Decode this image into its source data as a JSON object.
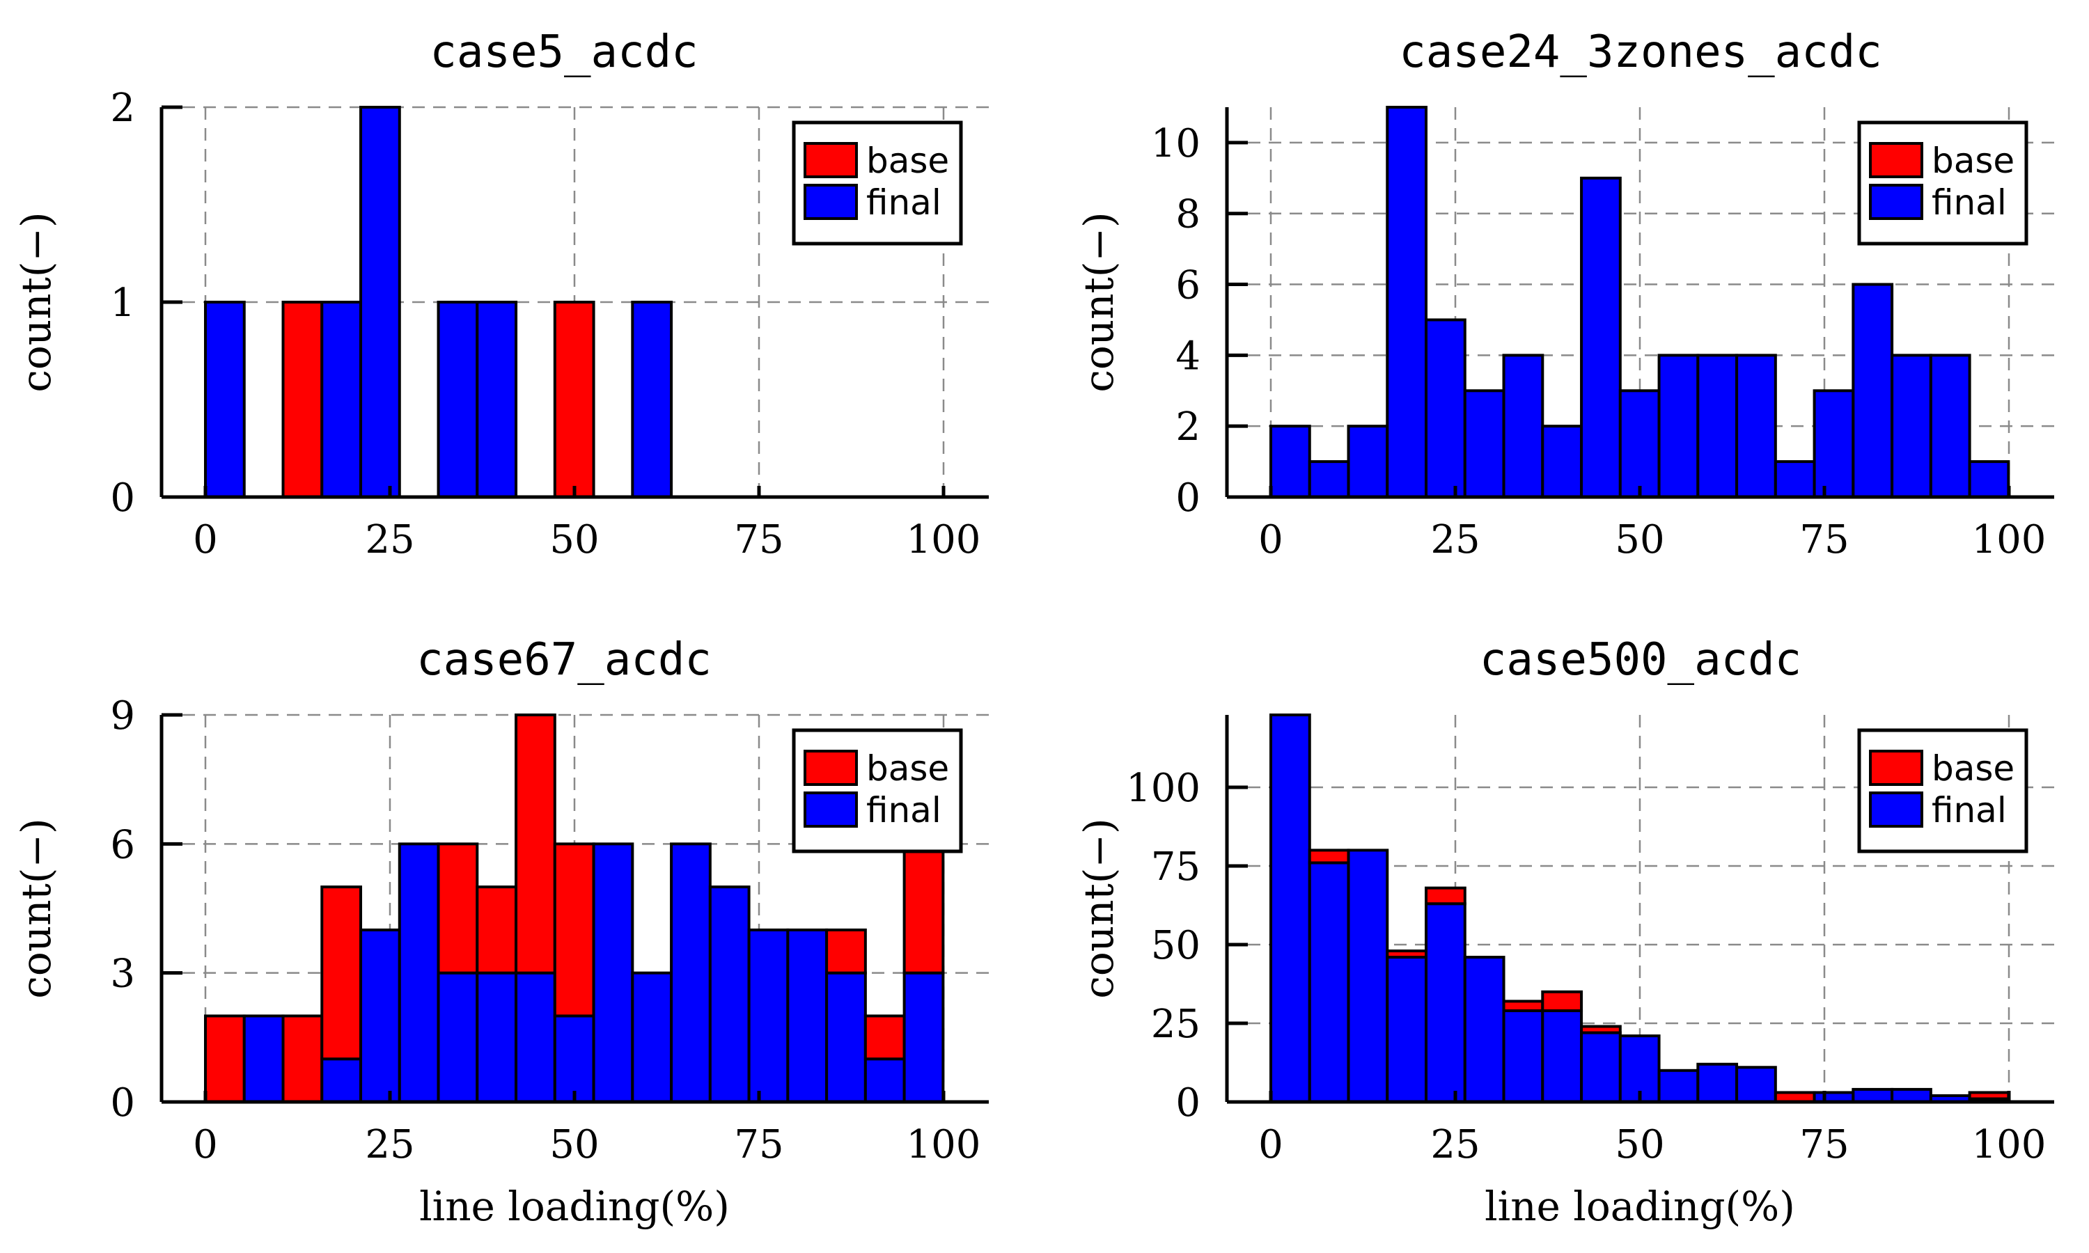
{
  "colors": {
    "base": "#ff0000",
    "final": "#0000ff"
  },
  "legend": {
    "base": "base",
    "final": "final",
    "placement": "top-right"
  },
  "chart_data": [
    {
      "type": "bar",
      "title": "case5_acdc",
      "xlabel": "",
      "ylabel": "count(−)",
      "xlim": [
        0,
        100
      ],
      "ylim": [
        0,
        2
      ],
      "xticks": [
        "0",
        "25",
        "50",
        "75",
        "100"
      ],
      "yticks": [
        "0",
        "1",
        "2"
      ],
      "bin_width": 5.26,
      "grid": true,
      "series": [
        {
          "name": "base",
          "values": [
            0,
            0,
            1,
            0,
            0,
            0,
            0,
            0,
            0,
            1,
            0,
            0,
            0,
            0,
            0,
            0,
            0,
            0,
            0
          ]
        },
        {
          "name": "final",
          "values": [
            1,
            0,
            0,
            1,
            2,
            0,
            1,
            1,
            0,
            0,
            0,
            1,
            0,
            0,
            0,
            0,
            0,
            0,
            0
          ]
        }
      ]
    },
    {
      "type": "bar",
      "title": "case24_3zones_acdc",
      "xlabel": "",
      "ylabel": "count(−)",
      "xlim": [
        0,
        100
      ],
      "ylim": [
        0,
        11
      ],
      "xticks": [
        "0",
        "25",
        "50",
        "75",
        "100"
      ],
      "yticks": [
        "0",
        "2",
        "4",
        "6",
        "8",
        "10"
      ],
      "bin_width": 5.26,
      "grid": true,
      "series": [
        {
          "name": "base",
          "values": [
            0,
            0,
            0,
            0,
            0,
            0,
            0,
            0,
            0,
            0,
            0,
            0,
            0,
            0,
            0,
            0,
            0,
            0,
            0
          ]
        },
        {
          "name": "final",
          "values": [
            2,
            1,
            2,
            11,
            5,
            3,
            4,
            2,
            9,
            3,
            4,
            4,
            4,
            1,
            3,
            6,
            4,
            4,
            1
          ]
        }
      ]
    },
    {
      "type": "bar",
      "title": "case67_acdc",
      "xlabel": "line loading(%)",
      "ylabel": "count(−)",
      "xlim": [
        0,
        100
      ],
      "ylim": [
        0,
        9
      ],
      "xticks": [
        "0",
        "25",
        "50",
        "75",
        "100"
      ],
      "yticks": [
        "0",
        "3",
        "6",
        "9"
      ],
      "bin_width": 5.26,
      "grid": true,
      "series": [
        {
          "name": "base",
          "values": [
            2,
            0,
            2,
            4,
            0,
            0,
            3,
            2,
            6,
            4,
            0,
            0,
            0,
            0,
            0,
            0,
            1,
            1,
            3
          ]
        },
        {
          "name": "final",
          "values": [
            0,
            2,
            0,
            1,
            4,
            6,
            3,
            3,
            3,
            2,
            6,
            3,
            6,
            5,
            4,
            4,
            3,
            1,
            3
          ]
        }
      ]
    },
    {
      "type": "bar",
      "title": "case500_acdc",
      "xlabel": "line loading(%)",
      "ylabel": "count(−)",
      "xlim": [
        0,
        100
      ],
      "ylim": [
        0,
        123
      ],
      "xticks": [
        "0",
        "25",
        "50",
        "75",
        "100"
      ],
      "yticks": [
        "0",
        "25",
        "50",
        "75",
        "100"
      ],
      "bin_width": 5.26,
      "grid": true,
      "series": [
        {
          "name": "base",
          "values": [
            0,
            4,
            0,
            2,
            5,
            0,
            3,
            6,
            2,
            0,
            0,
            0,
            0,
            3,
            0,
            0,
            0,
            0,
            2
          ]
        },
        {
          "name": "final",
          "values": [
            123,
            76,
            80,
            46,
            63,
            46,
            29,
            29,
            22,
            21,
            10,
            12,
            11,
            0,
            3,
            4,
            4,
            2,
            1
          ]
        }
      ]
    }
  ]
}
